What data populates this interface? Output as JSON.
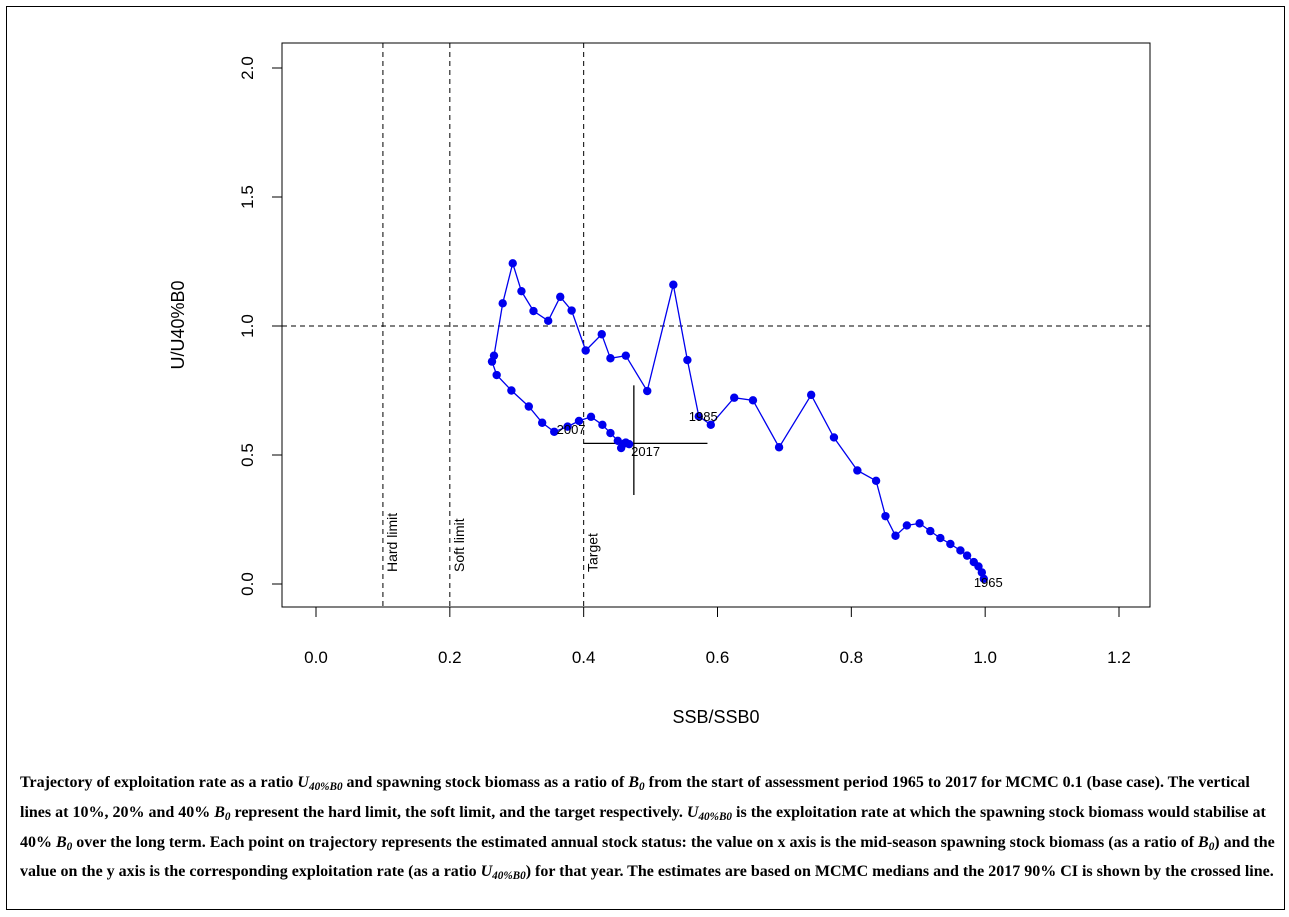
{
  "chart_data": {
    "type": "scatter",
    "xlabel": "SSB/SSB0",
    "ylabel": "U/U40%B0",
    "xlim": [
      0.0,
      1.2
    ],
    "ylim": [
      0.0,
      2.0
    ],
    "x_ticks": [
      0.0,
      0.2,
      0.4,
      0.6,
      0.8,
      1.0,
      1.2
    ],
    "y_ticks": [
      0.0,
      0.5,
      1.0,
      1.5,
      2.0
    ],
    "x_tick_labels": [
      "0.0",
      "0.2",
      "0.4",
      "0.6",
      "0.8",
      "1.0",
      "1.2"
    ],
    "y_tick_labels": [
      "0.0",
      "0.5",
      "1.0",
      "1.5",
      "2.0"
    ],
    "grid": false,
    "series": [
      {
        "color": "#0000ee",
        "x": [
          0.998,
          0.995,
          0.99,
          0.983,
          0.973,
          0.963,
          0.948,
          0.933,
          0.918,
          0.902,
          0.883,
          0.866,
          0.851,
          0.837,
          0.809,
          0.774,
          0.74,
          0.692,
          0.653,
          0.625,
          0.59,
          0.572,
          0.555,
          0.534,
          0.495,
          0.463,
          0.44,
          0.427,
          0.403,
          0.382,
          0.365,
          0.347,
          0.325,
          0.307,
          0.294,
          0.279,
          0.266,
          0.263,
          0.27,
          0.292,
          0.318,
          0.338,
          0.356,
          0.376,
          0.393,
          0.411,
          0.428,
          0.44,
          0.451,
          0.456,
          0.461,
          0.463,
          0.468
        ],
        "y": [
          0.02,
          0.045,
          0.068,
          0.085,
          0.11,
          0.13,
          0.155,
          0.178,
          0.205,
          0.235,
          0.227,
          0.187,
          0.263,
          0.4,
          0.44,
          0.568,
          0.733,
          0.53,
          0.712,
          0.722,
          0.617,
          0.65,
          0.868,
          1.16,
          0.748,
          0.885,
          0.875,
          0.968,
          0.905,
          1.06,
          1.113,
          1.02,
          1.058,
          1.135,
          1.243,
          1.088,
          0.885,
          0.862,
          0.81,
          0.75,
          0.688,
          0.625,
          0.59,
          0.61,
          0.632,
          0.648,
          0.617,
          0.585,
          0.555,
          0.527,
          0.545,
          0.548,
          0.542
        ]
      }
    ],
    "point_labels": [
      {
        "text": "1965",
        "x": 0.998,
        "y": 0.02
      },
      {
        "text": "1985",
        "x": 0.572,
        "y": 0.617
      },
      {
        "text": "2007",
        "x": 0.382,
        "y": 0.59
      },
      {
        "text": "2017",
        "x": 0.468,
        "y": 0.542
      }
    ],
    "reference_lines": {
      "vertical": [
        {
          "x": 0.1,
          "label": "Hard limit"
        },
        {
          "x": 0.2,
          "label": "Soft limit"
        },
        {
          "x": 0.4,
          "label": "Target"
        }
      ],
      "horizontal": [
        {
          "y": 1.0
        }
      ]
    },
    "ci_2017": {
      "x_range": [
        0.4,
        0.585
      ],
      "y_range": [
        0.345,
        0.77
      ],
      "x": 0.475,
      "y": 0.545
    }
  },
  "caption": {
    "p1": "Trajectory of exploitation rate as a ratio ",
    "u_main": "U",
    "u_sub": "40%B0",
    "p2": " and spawning stock biomass as a ratio of ",
    "b_main": "B",
    "b_sub": "0",
    "p3": " from the start of assessment period 1965 to 2017 for MCMC 0.1 (base case). The vertical lines at 10%, 20% and 40% ",
    "b2_main": "B",
    "b2_sub": "0",
    "p4": " represent the hard limit, the soft limit, and the target respectively. ",
    "u2_main": "U",
    "u2_sub": "40%B0",
    "p5": " is the exploitation rate at which the spawning stock biomass would stabilise at 40% ",
    "b3_main": "B",
    "b3_sub": "0",
    "p6": " over the long term. Each point on trajectory represents the estimated annual stock status: the value on x axis is the mid-season spawning stock biomass (as a ratio of ",
    "b4_main": "B",
    "b4_sub": "0",
    "p7": ") and the value on the y axis is the corresponding exploitation rate (as a ratio ",
    "u3_main": "U",
    "u3_sub": "40%B0",
    "p8": ") for that year. The estimates are based on MCMC medians and the 2017 90% CI is shown by the crossed line."
  }
}
